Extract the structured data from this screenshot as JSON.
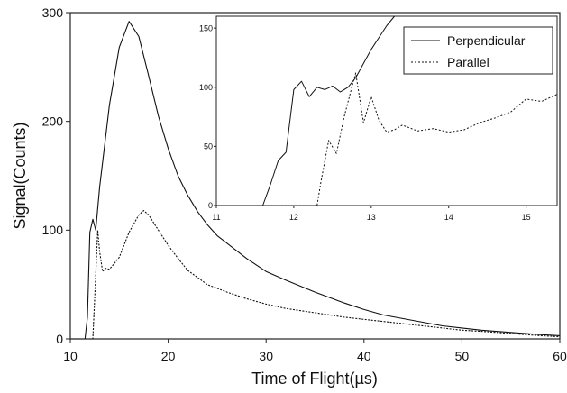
{
  "chart_data": [
    {
      "type": "line",
      "xlabel": "Time of Flight(µs)",
      "ylabel": "Signal(Counts)",
      "xlim": [
        10,
        60
      ],
      "ylim": [
        0,
        300
      ],
      "xticks": [
        "10",
        "20",
        "30",
        "40",
        "50",
        "60"
      ],
      "yticks": [
        "0",
        "100",
        "200",
        "300"
      ],
      "grid": false,
      "series": [
        {
          "name": "Perpendicular",
          "style": "solid",
          "x": [
            10,
            11.5,
            11.75,
            12.0,
            12.3,
            12.6,
            13.0,
            14.0,
            15.0,
            16.0,
            17.0,
            18.0,
            19.0,
            20.0,
            21.0,
            22.0,
            23.0,
            24.0,
            25.0,
            26.0,
            28.0,
            30.0,
            32.0,
            35.0,
            38.0,
            40.0,
            42.0,
            45.0,
            48.0,
            50.0,
            52.0,
            55.0,
            58.0,
            60.0
          ],
          "y": [
            0,
            0,
            20,
            98,
            110,
            100,
            140,
            215,
            268,
            292,
            278,
            242,
            205,
            175,
            150,
            132,
            117,
            105,
            95,
            88,
            74,
            62,
            54,
            43,
            33,
            27,
            22,
            17,
            12,
            10,
            8,
            6,
            4,
            3
          ]
        },
        {
          "name": "Parallel",
          "style": "dotted",
          "x": [
            10,
            12.3,
            12.5,
            12.8,
            13.0,
            13.3,
            13.6,
            14.0,
            15.0,
            16.0,
            17.0,
            17.5,
            18.0,
            19.0,
            20.0,
            21.0,
            22.0,
            24.0,
            26.0,
            28.0,
            30.0,
            32.0,
            35.0,
            38.0,
            40.0,
            42.0,
            45.0,
            48.0,
            50.0,
            52.0,
            55.0,
            58.0,
            60.0
          ],
          "y": [
            0,
            0,
            40,
            100,
            80,
            62,
            65,
            64,
            75,
            98,
            114,
            118,
            114,
            100,
            86,
            74,
            63,
            50,
            43,
            37,
            32,
            28,
            24,
            20,
            18,
            16,
            13,
            10,
            8,
            7,
            5,
            3,
            2
          ]
        }
      ]
    },
    {
      "type": "line",
      "xlim": [
        11,
        15.4
      ],
      "ylim": [
        0,
        160
      ],
      "xticks": [
        "11",
        "12",
        "13",
        "14",
        "15"
      ],
      "yticks": [
        "0",
        "50",
        "100",
        "150"
      ],
      "legend": {
        "placement": "top-right",
        "entries": [
          "Perpendicular",
          "Parallel"
        ]
      },
      "series": [
        {
          "name": "Perpendicular",
          "style": "solid",
          "x": [
            11,
            11.6,
            11.7,
            11.8,
            11.9,
            12.0,
            12.1,
            12.2,
            12.3,
            12.4,
            12.5,
            12.6,
            12.7,
            12.8,
            12.9,
            13.0,
            13.1,
            13.2,
            13.3
          ],
          "y": [
            0,
            0,
            18,
            38,
            45,
            98,
            105,
            92,
            100,
            98,
            101,
            96,
            100,
            108,
            120,
            132,
            142,
            152,
            160
          ]
        },
        {
          "name": "Parallel",
          "style": "dotted",
          "x": [
            11,
            12.3,
            12.35,
            12.45,
            12.55,
            12.65,
            12.75,
            12.8,
            12.9,
            13.0,
            13.1,
            13.2,
            13.3,
            13.4,
            13.6,
            13.8,
            14.0,
            14.2,
            14.4,
            14.6,
            14.8,
            15.0,
            15.2,
            15.4
          ],
          "y": [
            0,
            0,
            20,
            55,
            44,
            75,
            100,
            112,
            70,
            92,
            72,
            62,
            64,
            68,
            63,
            65,
            62,
            64,
            70,
            74,
            79,
            90,
            88,
            94
          ]
        }
      ]
    }
  ]
}
